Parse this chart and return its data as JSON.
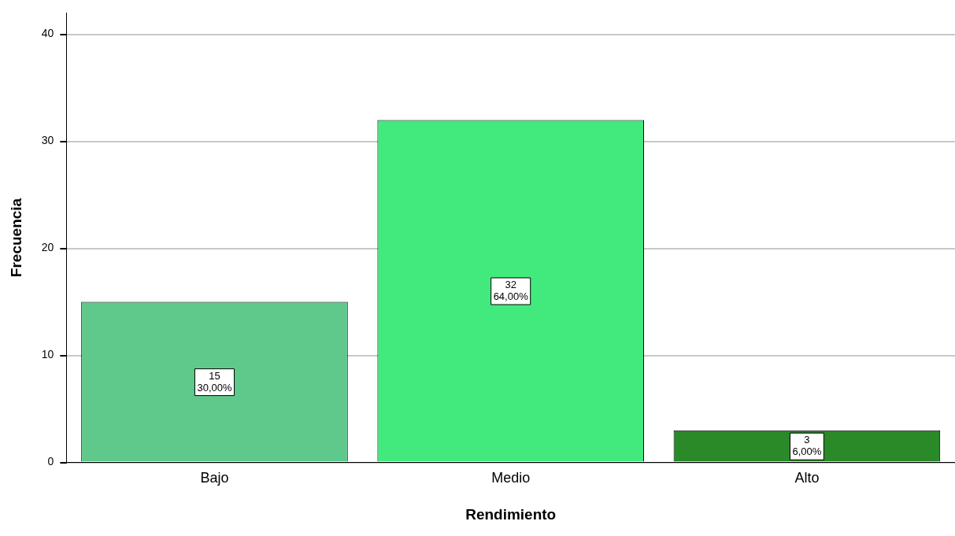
{
  "chart_data": {
    "type": "bar",
    "xlabel": "Rendimiento",
    "ylabel": "Frecuencia",
    "categories": [
      "Bajo",
      "Medio",
      "Alto"
    ],
    "values": [
      15,
      32,
      3
    ],
    "colors": [
      "#5ec98b",
      "#42ea7e",
      "#2a8a2a"
    ],
    "value_labels": [
      "15\n30,00%",
      "32\n64,00%",
      "3\n6,00%"
    ],
    "ylim": [
      0,
      42
    ],
    "yticks": [
      0,
      10,
      20,
      30,
      40
    ],
    "grid": "y",
    "legend": false
  }
}
